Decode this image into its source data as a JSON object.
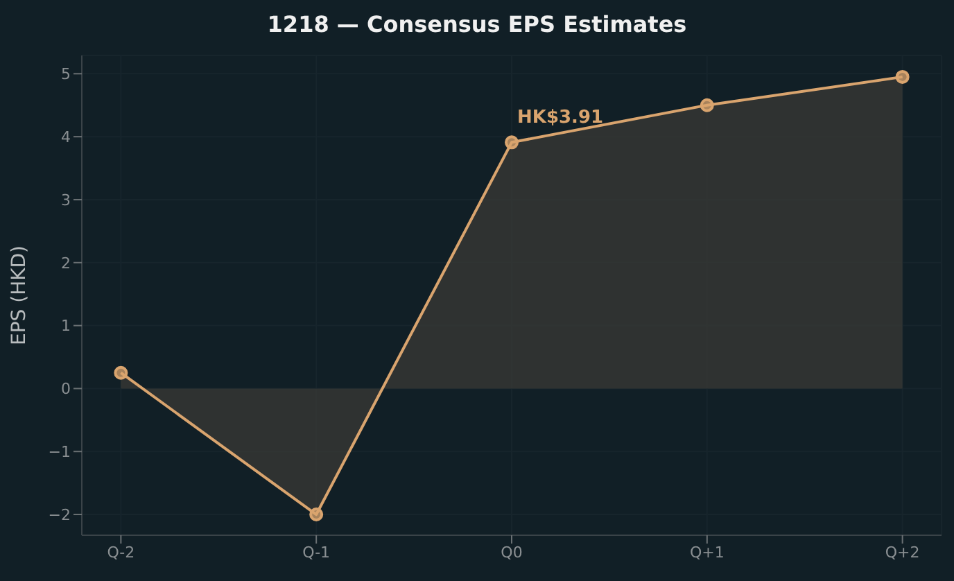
{
  "chart_data": {
    "type": "area",
    "title": "1218 — Consensus EPS Estimates",
    "ylabel": "EPS (HKD)",
    "categories": [
      "Q-2",
      "Q-1",
      "Q0",
      "Q+1",
      "Q+2"
    ],
    "series": [
      {
        "color": "#d9a46e",
        "values": [
          0.25,
          -2.0,
          3.91,
          4.5,
          4.95
        ]
      }
    ],
    "ylim": [
      -2.33,
      5.29
    ],
    "yticks": [
      {
        "value": -2,
        "label": "−2"
      },
      {
        "value": -1,
        "label": "−1"
      },
      0,
      1,
      2,
      3,
      4,
      5
    ],
    "grid": true,
    "marker": "circle",
    "annotations": [
      {
        "text": "HK$3.91",
        "x": "Q0",
        "y": 3.91
      }
    ]
  }
}
